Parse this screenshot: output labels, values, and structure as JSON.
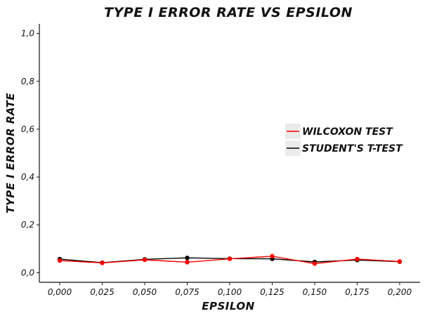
{
  "chart_data": {
    "type": "line",
    "title": "TYPE I ERROR RATE VS EPSILON",
    "xlabel": "EPSILON",
    "ylabel": "TYPE I ERROR RATE",
    "x": [
      0.0,
      0.025,
      0.05,
      0.075,
      0.1,
      0.125,
      0.15,
      0.175,
      0.2
    ],
    "x_tick_labels": [
      "0,000",
      "0,025",
      "0,050",
      "0,075",
      "0,100",
      "0,125",
      "0,150",
      "0,175",
      "0,200"
    ],
    "y_ticks": [
      0.0,
      0.2,
      0.4,
      0.6,
      0.8,
      1.0
    ],
    "y_tick_labels": [
      "0,0",
      "0,2",
      "0,4",
      "0,6",
      "0,8",
      "1,0"
    ],
    "xlim": [
      -0.012,
      0.212
    ],
    "ylim": [
      -0.04,
      1.04
    ],
    "grid": false,
    "legend_position": "right",
    "series": [
      {
        "name": "WILCOXON TEST",
        "color": "#ff0000",
        "values": [
          0.051,
          0.041,
          0.054,
          0.044,
          0.058,
          0.069,
          0.038,
          0.057,
          0.047
        ]
      },
      {
        "name": "STUDENT'S T-TEST",
        "color": "#000000",
        "values": [
          0.057,
          0.042,
          0.056,
          0.062,
          0.059,
          0.058,
          0.045,
          0.053,
          0.046
        ]
      }
    ]
  }
}
